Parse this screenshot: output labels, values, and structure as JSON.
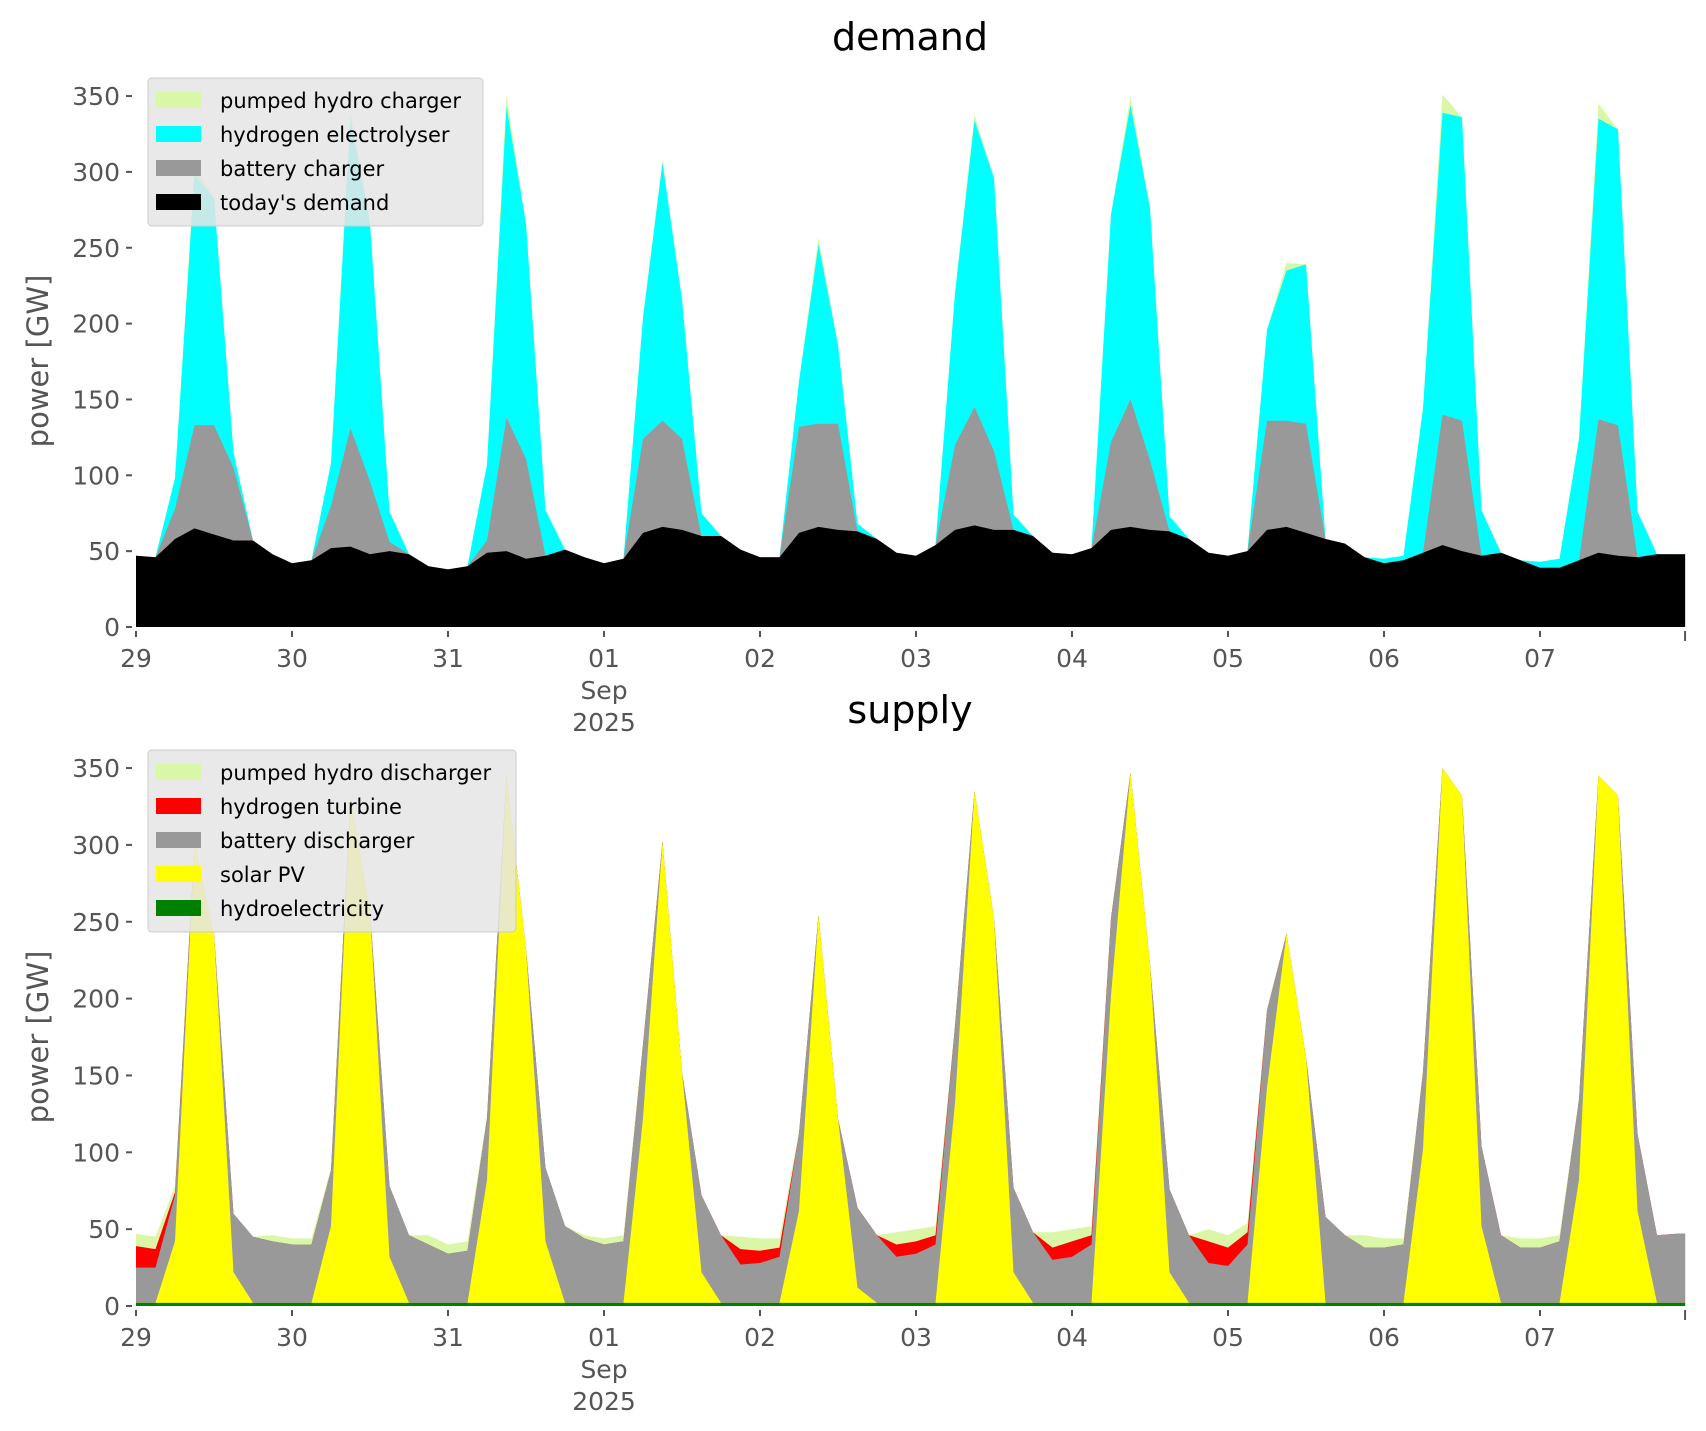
{
  "chart_data": [
    {
      "id": "demand",
      "type": "area",
      "stacked": true,
      "title": "demand",
      "xlabel": "",
      "ylabel": "power [GW]",
      "ylim": [
        0,
        360
      ],
      "yticks": [
        0,
        50,
        100,
        150,
        200,
        250,
        300,
        350
      ],
      "x_unit": "hours since 2025-08-29 00:00",
      "x_step_hours": 3,
      "xlim_days": [
        0,
        9.93
      ],
      "xticks": [
        {
          "day": 0,
          "label": "29"
        },
        {
          "day": 1,
          "label": "30"
        },
        {
          "day": 2,
          "label": "31"
        },
        {
          "day": 3,
          "label": "01",
          "sublabel": "Sep",
          "sublabel2": "2025"
        },
        {
          "day": 4,
          "label": "02"
        },
        {
          "day": 5,
          "label": "03"
        },
        {
          "day": 6,
          "label": "04"
        },
        {
          "day": 7,
          "label": "05"
        },
        {
          "day": 8,
          "label": "06"
        },
        {
          "day": 9,
          "label": "07"
        }
      ],
      "legend_position": "upper-left",
      "series": [
        {
          "name": "today's demand",
          "color": "#000000",
          "values": [
            47,
            46,
            58,
            65,
            61,
            57,
            57,
            48,
            42,
            44,
            52,
            53,
            48,
            50,
            48,
            40,
            38,
            40,
            49,
            50,
            45,
            47,
            51,
            46,
            42,
            45,
            62,
            66,
            64,
            60,
            60,
            51,
            46,
            46,
            62,
            66,
            64,
            63,
            58,
            49,
            47,
            54,
            64,
            67,
            64,
            64,
            60,
            49,
            48,
            52,
            64,
            66,
            64,
            63,
            58,
            49,
            47,
            50,
            64,
            66,
            62,
            58,
            55,
            46,
            42,
            44,
            49,
            54,
            50,
            47,
            49,
            44,
            39,
            39,
            44,
            49,
            47,
            46,
            48,
            48
          ]
        },
        {
          "name": "battery charger",
          "color": "#999999",
          "values": [
            0,
            0,
            20,
            68,
            72,
            48,
            0,
            0,
            0,
            0,
            28,
            78,
            48,
            6,
            0,
            0,
            0,
            0,
            8,
            88,
            66,
            0,
            0,
            0,
            0,
            0,
            62,
            70,
            60,
            0,
            0,
            0,
            0,
            0,
            70,
            68,
            70,
            0,
            0,
            0,
            0,
            0,
            56,
            78,
            52,
            0,
            0,
            0,
            0,
            0,
            58,
            84,
            46,
            0,
            0,
            0,
            0,
            0,
            72,
            70,
            72,
            0,
            0,
            0,
            0,
            0,
            0,
            86,
            86,
            0,
            0,
            0,
            0,
            0,
            0,
            88,
            86,
            0,
            0,
            0
          ]
        },
        {
          "name": "hydrogen electrolyser",
          "color": "#00ffff",
          "values": [
            0,
            0,
            20,
            165,
            150,
            10,
            0,
            0,
            0,
            0,
            28,
            205,
            170,
            20,
            0,
            0,
            0,
            0,
            50,
            205,
            155,
            30,
            0,
            0,
            0,
            0,
            80,
            170,
            92,
            15,
            0,
            0,
            0,
            0,
            30,
            118,
            52,
            5,
            0,
            0,
            0,
            0,
            100,
            189,
            180,
            10,
            0,
            0,
            0,
            0,
            150,
            194,
            166,
            10,
            0,
            0,
            0,
            0,
            60,
            99,
            105,
            0,
            0,
            0,
            3,
            3,
            95,
            199,
            200,
            30,
            0,
            0,
            4,
            6,
            80,
            198,
            195,
            30,
            0,
            0
          ]
        },
        {
          "name": "pumped hydro charger",
          "color": "#d9f7a6",
          "values": [
            0,
            0,
            0,
            5,
            0,
            0,
            0,
            0,
            0,
            0,
            0,
            4,
            0,
            0,
            0,
            0,
            0,
            0,
            0,
            8,
            0,
            0,
            0,
            0,
            0,
            0,
            0,
            2,
            0,
            0,
            0,
            0,
            0,
            0,
            0,
            5,
            0,
            0,
            0,
            0,
            0,
            0,
            0,
            4,
            0,
            0,
            0,
            0,
            0,
            0,
            0,
            6,
            0,
            0,
            0,
            0,
            0,
            0,
            0,
            5,
            0,
            0,
            0,
            0,
            0,
            0,
            0,
            12,
            0,
            0,
            0,
            0,
            0,
            0,
            0,
            10,
            0,
            0,
            0,
            0
          ]
        }
      ],
      "legend": [
        {
          "label": "pumped hydro charger",
          "color": "#d9f7a6"
        },
        {
          "label": "hydrogen electrolyser",
          "color": "#00ffff"
        },
        {
          "label": "battery charger",
          "color": "#999999"
        },
        {
          "label": "today's demand",
          "color": "#000000"
        }
      ]
    },
    {
      "id": "supply",
      "type": "area",
      "stacked": true,
      "title": "supply",
      "xlabel": "",
      "ylabel": "power [GW]",
      "ylim": [
        0,
        360
      ],
      "yticks": [
        0,
        50,
        100,
        150,
        200,
        250,
        300,
        350
      ],
      "x_unit": "hours since 2025-08-29 00:00",
      "x_step_hours": 3,
      "xlim_days": [
        0,
        9.93
      ],
      "xticks": [
        {
          "day": 0,
          "label": "29"
        },
        {
          "day": 1,
          "label": "30"
        },
        {
          "day": 2,
          "label": "31"
        },
        {
          "day": 3,
          "label": "01",
          "sublabel": "Sep",
          "sublabel2": "2025"
        },
        {
          "day": 4,
          "label": "02"
        },
        {
          "day": 5,
          "label": "03"
        },
        {
          "day": 6,
          "label": "04"
        },
        {
          "day": 7,
          "label": "05"
        },
        {
          "day": 8,
          "label": "06"
        },
        {
          "day": 9,
          "label": "07"
        }
      ],
      "legend_position": "upper-left",
      "series": [
        {
          "name": "hydroelectricity",
          "color": "#008000",
          "values": [
            2,
            2,
            2,
            2,
            2,
            2,
            2,
            2,
            2,
            2,
            2,
            2,
            2,
            2,
            2,
            2,
            2,
            2,
            2,
            2,
            2,
            2,
            2,
            2,
            2,
            2,
            2,
            2,
            2,
            2,
            2,
            2,
            2,
            2,
            2,
            2,
            2,
            2,
            2,
            2,
            2,
            2,
            2,
            2,
            2,
            2,
            2,
            2,
            2,
            2,
            2,
            2,
            2,
            2,
            2,
            2,
            2,
            2,
            2,
            2,
            2,
            2,
            2,
            2,
            2,
            2,
            2,
            2,
            2,
            2,
            2,
            2,
            2,
            2,
            2,
            2,
            2,
            2,
            2,
            2
          ]
        },
        {
          "name": "solar PV",
          "color": "#ffff00",
          "values": [
            0,
            0,
            40,
            298,
            240,
            20,
            0,
            0,
            0,
            0,
            50,
            328,
            255,
            30,
            0,
            0,
            0,
            0,
            80,
            343,
            230,
            40,
            0,
            0,
            0,
            0,
            120,
            300,
            150,
            20,
            0,
            0,
            0,
            0,
            60,
            252,
            120,
            10,
            0,
            0,
            0,
            0,
            130,
            333,
            250,
            20,
            0,
            0,
            0,
            0,
            200,
            345,
            220,
            20,
            0,
            0,
            0,
            0,
            140,
            240,
            160,
            0,
            0,
            0,
            0,
            0,
            100,
            348,
            330,
            50,
            0,
            0,
            0,
            0,
            80,
            343,
            330,
            60,
            0,
            0
          ]
        },
        {
          "name": "battery discharger",
          "color": "#999999",
          "values": [
            23,
            23,
            30,
            0,
            0,
            38,
            43,
            40,
            38,
            38,
            36,
            0,
            0,
            46,
            44,
            38,
            32,
            34,
            40,
            0,
            0,
            48,
            50,
            42,
            38,
            40,
            48,
            0,
            0,
            50,
            44,
            25,
            26,
            30,
            50,
            0,
            0,
            52,
            44,
            30,
            32,
            38,
            50,
            0,
            0,
            55,
            46,
            28,
            30,
            38,
            50,
            0,
            0,
            54,
            44,
            26,
            24,
            38,
            50,
            0,
            0,
            56,
            44,
            36,
            36,
            38,
            50,
            0,
            0,
            52,
            44,
            36,
            36,
            40,
            52,
            0,
            0,
            50,
            44,
            45
          ]
        },
        {
          "name": "hydrogen turbine",
          "color": "#ff0000",
          "values": [
            14,
            12,
            2,
            0,
            0,
            0,
            0,
            0,
            0,
            0,
            0,
            0,
            0,
            0,
            0,
            0,
            0,
            0,
            0,
            0,
            0,
            0,
            0,
            0,
            0,
            0,
            0,
            0,
            0,
            0,
            0,
            10,
            8,
            6,
            0,
            0,
            0,
            0,
            0,
            8,
            8,
            6,
            0,
            0,
            0,
            0,
            0,
            8,
            10,
            6,
            0,
            0,
            0,
            0,
            0,
            14,
            12,
            8,
            0,
            0,
            0,
            0,
            0,
            0,
            0,
            0,
            0,
            0,
            0,
            0,
            0,
            0,
            0,
            0,
            0,
            0,
            0,
            0,
            0,
            0
          ]
        },
        {
          "name": "pumped hydro discharger",
          "color": "#d9f7a6",
          "values": [
            8,
            8,
            4,
            0,
            0,
            0,
            0,
            4,
            4,
            4,
            2,
            0,
            0,
            0,
            0,
            6,
            6,
            6,
            2,
            0,
            0,
            0,
            0,
            2,
            4,
            4,
            2,
            0,
            0,
            0,
            0,
            8,
            8,
            6,
            2,
            0,
            0,
            0,
            0,
            8,
            8,
            6,
            2,
            0,
            0,
            0,
            0,
            10,
            8,
            6,
            2,
            0,
            0,
            0,
            0,
            8,
            8,
            6,
            2,
            0,
            0,
            0,
            0,
            8,
            6,
            4,
            2,
            0,
            0,
            0,
            0,
            6,
            6,
            4,
            2,
            0,
            0,
            0,
            0,
            0
          ]
        }
      ],
      "legend": [
        {
          "label": "pumped hydro discharger",
          "color": "#d9f7a6"
        },
        {
          "label": "hydrogen turbine",
          "color": "#ff0000"
        },
        {
          "label": "battery discharger",
          "color": "#999999"
        },
        {
          "label": "solar PV",
          "color": "#ffff00"
        },
        {
          "label": "hydroelectricity",
          "color": "#008000"
        }
      ]
    }
  ]
}
